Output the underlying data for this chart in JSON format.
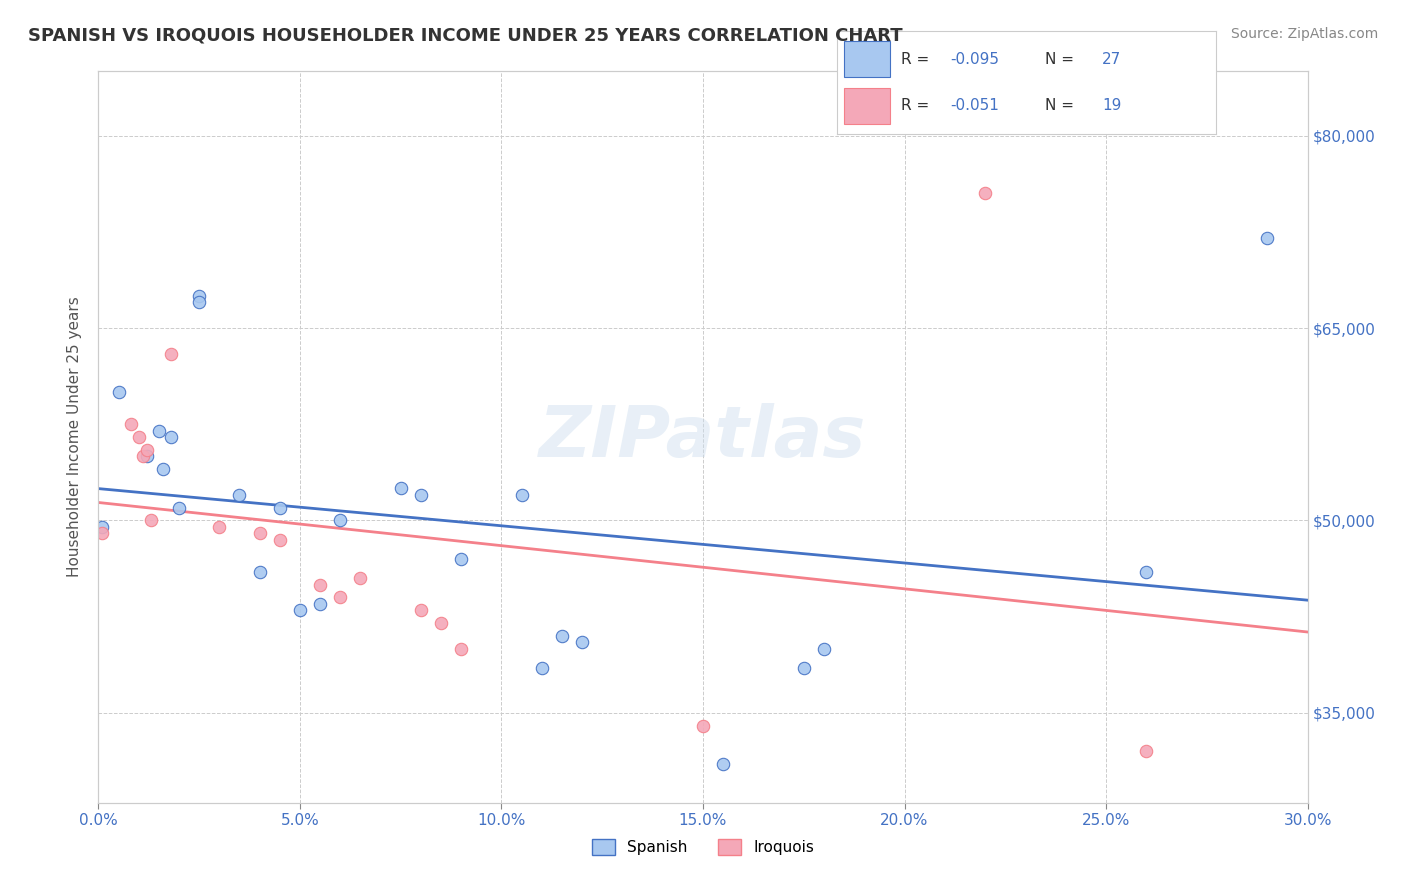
{
  "title": "SPANISH VS IROQUOIS HOUSEHOLDER INCOME UNDER 25 YEARS CORRELATION CHART",
  "source_text": "Source: ZipAtlas.com",
  "xlabel": "",
  "ylabel": "Householder Income Under 25 years",
  "xlim": [
    0.0,
    0.3
  ],
  "ylim": [
    28000,
    85000
  ],
  "xtick_labels": [
    "0.0%",
    "5.0%",
    "10.0%",
    "15.0%",
    "20.0%",
    "25.0%",
    "30.0%"
  ],
  "xtick_vals": [
    0.0,
    0.05,
    0.1,
    0.15,
    0.2,
    0.25,
    0.3
  ],
  "ytick_labels": [
    "$35,000",
    "$50,000",
    "$65,000",
    "$80,000"
  ],
  "ytick_vals": [
    35000,
    50000,
    65000,
    80000
  ],
  "watermark": "ZIPatlas",
  "legend_R1": "-0.095",
  "legend_N1": "27",
  "legend_R2": "-0.051",
  "legend_N2": "19",
  "spanish_color": "#a8c8f0",
  "iroquois_color": "#f4a8b8",
  "trend_spanish_color": "#4472c4",
  "trend_iroquois_color": "#f4808a",
  "spanish_scatter": [
    [
      0.001,
      49500
    ],
    [
      0.005,
      60000
    ],
    [
      0.012,
      55000
    ],
    [
      0.015,
      57000
    ],
    [
      0.016,
      54000
    ],
    [
      0.018,
      56500
    ],
    [
      0.02,
      51000
    ],
    [
      0.025,
      67500
    ],
    [
      0.025,
      67000
    ],
    [
      0.035,
      52000
    ],
    [
      0.04,
      46000
    ],
    [
      0.045,
      51000
    ],
    [
      0.05,
      43000
    ],
    [
      0.055,
      43500
    ],
    [
      0.06,
      50000
    ],
    [
      0.075,
      52500
    ],
    [
      0.08,
      52000
    ],
    [
      0.09,
      47000
    ],
    [
      0.105,
      52000
    ],
    [
      0.11,
      38500
    ],
    [
      0.115,
      41000
    ],
    [
      0.12,
      40500
    ],
    [
      0.155,
      31000
    ],
    [
      0.175,
      38500
    ],
    [
      0.18,
      40000
    ],
    [
      0.26,
      46000
    ],
    [
      0.29,
      72000
    ]
  ],
  "iroquois_scatter": [
    [
      0.001,
      49000
    ],
    [
      0.008,
      57500
    ],
    [
      0.01,
      56500
    ],
    [
      0.011,
      55000
    ],
    [
      0.012,
      55500
    ],
    [
      0.013,
      50000
    ],
    [
      0.018,
      63000
    ],
    [
      0.03,
      49500
    ],
    [
      0.04,
      49000
    ],
    [
      0.045,
      48500
    ],
    [
      0.055,
      45000
    ],
    [
      0.06,
      44000
    ],
    [
      0.065,
      45500
    ],
    [
      0.08,
      43000
    ],
    [
      0.085,
      42000
    ],
    [
      0.09,
      40000
    ],
    [
      0.15,
      34000
    ],
    [
      0.22,
      75500
    ],
    [
      0.26,
      32000
    ]
  ],
  "bg_color": "#ffffff",
  "grid_color": "#cccccc",
  "title_color": "#333333",
  "axis_label_color": "#4472c4"
}
